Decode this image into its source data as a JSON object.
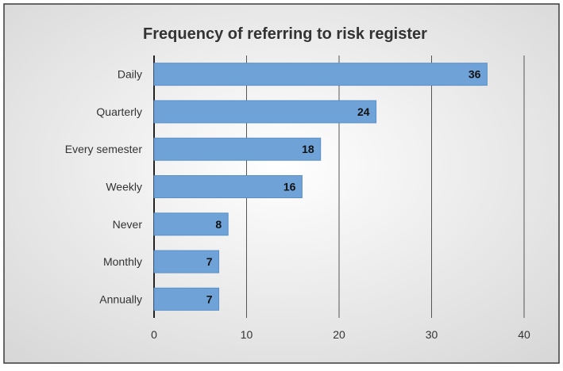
{
  "chart_data": {
    "type": "bar",
    "orientation": "horizontal",
    "title": "Frequency of referring to risk register",
    "xlabel": "",
    "ylabel": "",
    "categories": [
      "Daily",
      "Quarterly",
      "Every semester",
      "Weekly",
      "Never",
      "Monthly",
      "Annually"
    ],
    "values": [
      36,
      24,
      18,
      16,
      8,
      7,
      7
    ],
    "xlim": [
      0,
      40
    ],
    "x_ticks": [
      0,
      10,
      20,
      30,
      40
    ],
    "grid": "vertical",
    "data_labels": true,
    "legend": "none",
    "colors": {
      "bar": "#6fa3d8",
      "bar_edge": "#5b8fc8",
      "gridline": "#555555",
      "text": "#333333",
      "label_text": "#111111",
      "background_light": "#ffffff",
      "background_dark": "#d9d9d9"
    }
  }
}
